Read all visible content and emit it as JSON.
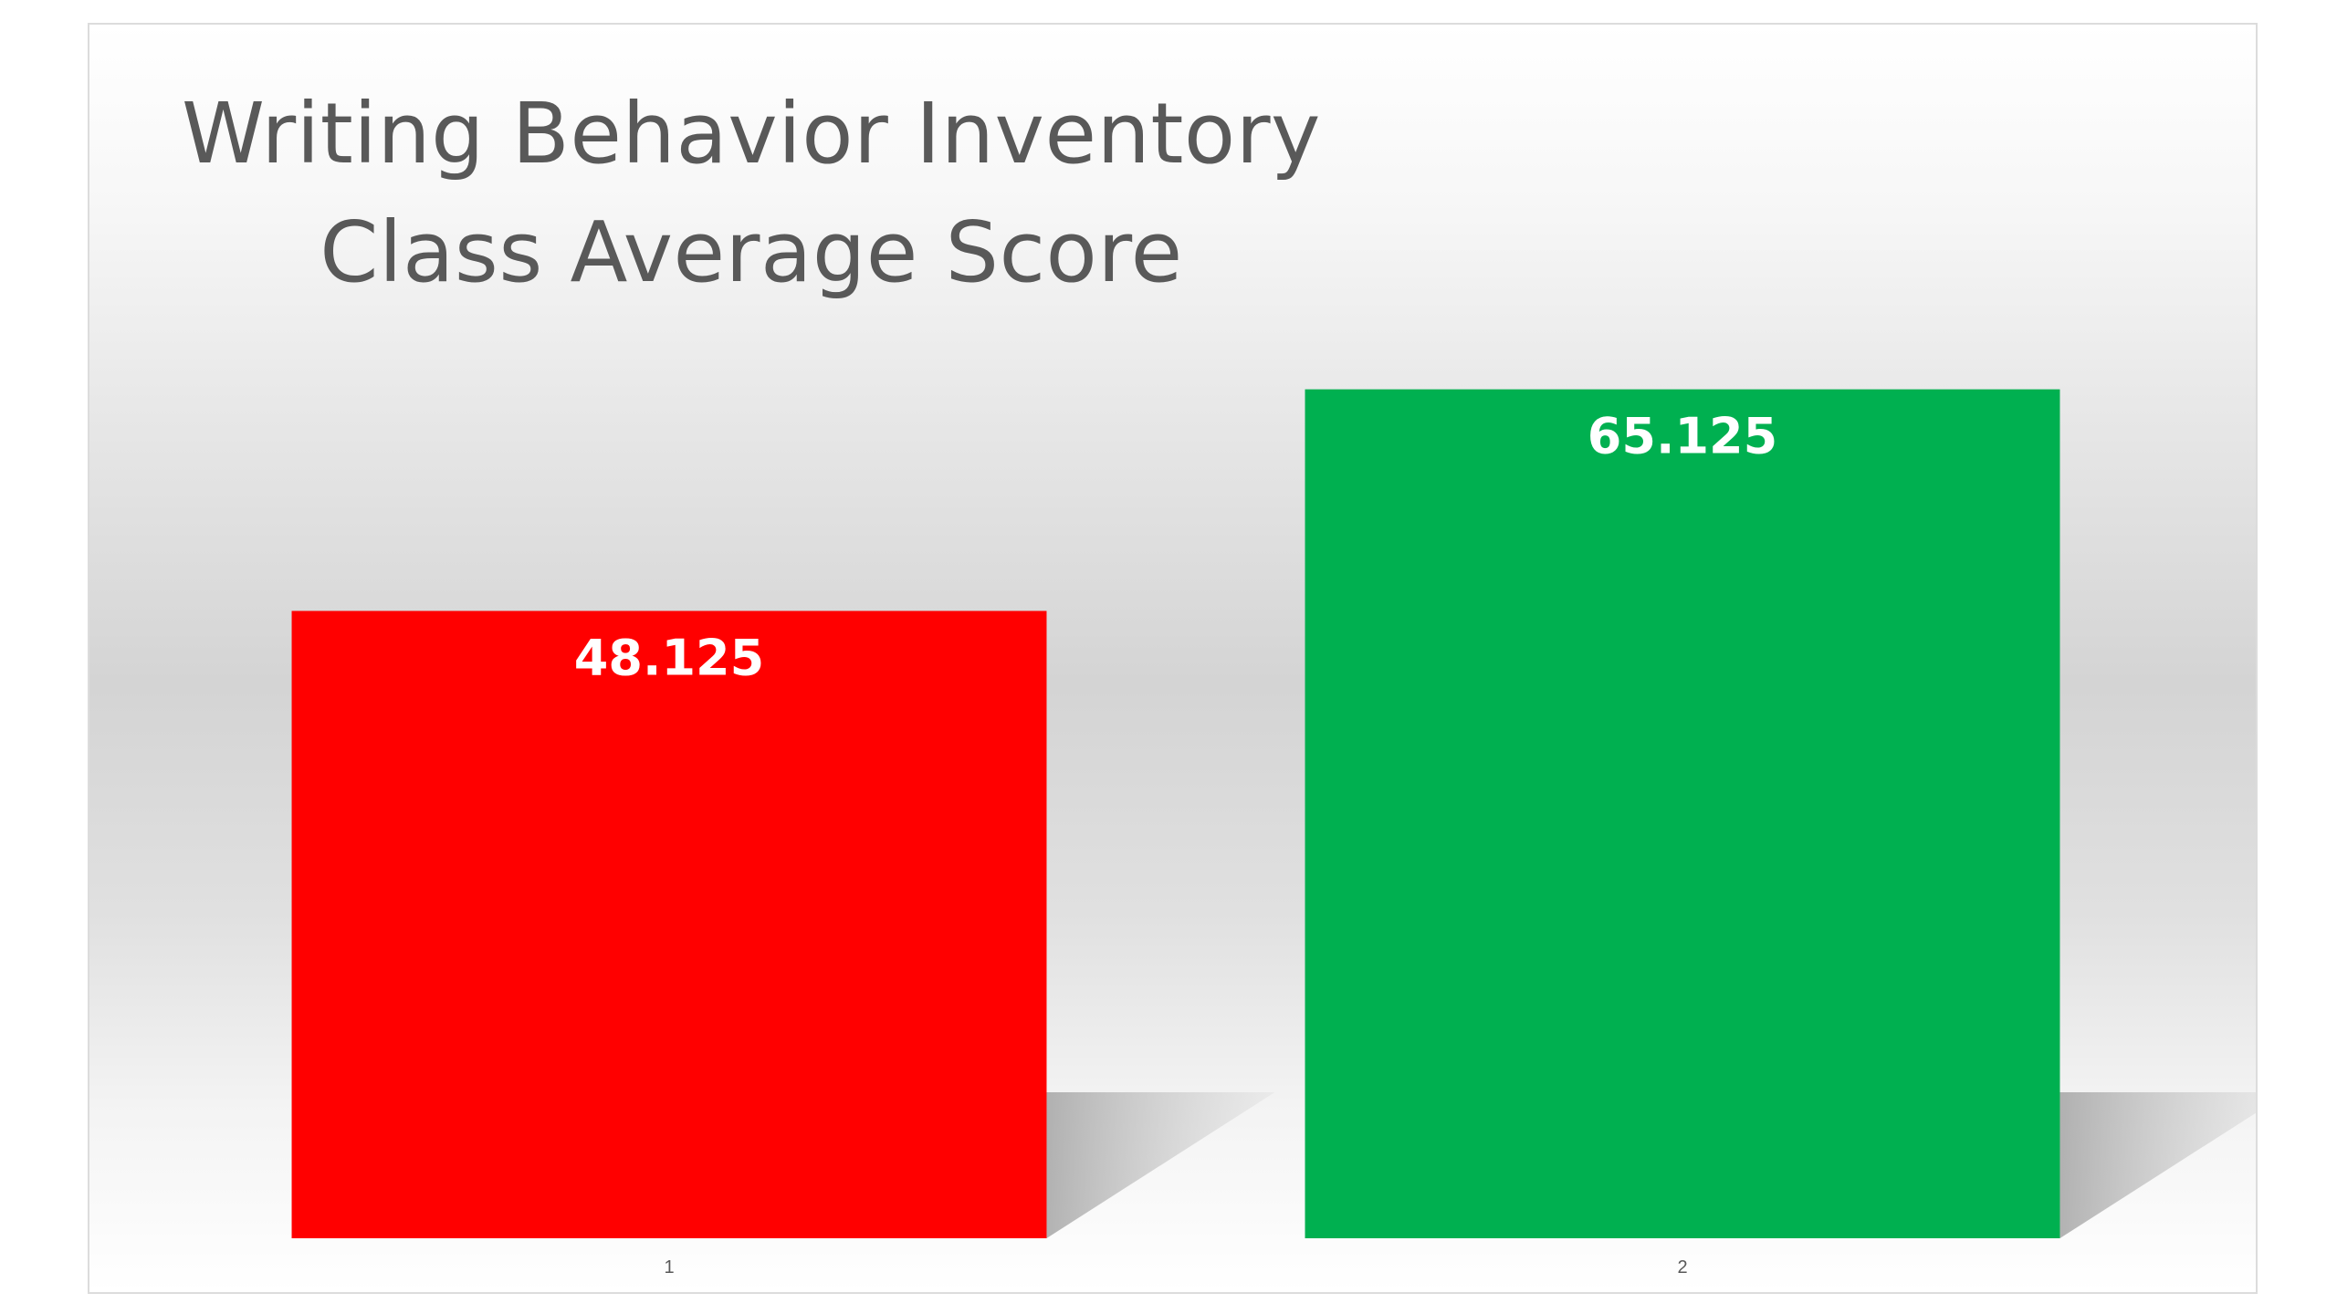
{
  "chart_data": {
    "type": "bar",
    "title_lines": [
      "Writing Behavior Inventory",
      "Class Average Score"
    ],
    "categories": [
      "1",
      "2"
    ],
    "values": [
      48.125,
      65.125
    ],
    "colors": [
      "#ff0000",
      "#00b050"
    ],
    "data_label_color": "#ffffff",
    "ylim": [
      0,
      70
    ],
    "grid": false,
    "legend": "none",
    "xlabel": "",
    "ylabel": ""
  }
}
